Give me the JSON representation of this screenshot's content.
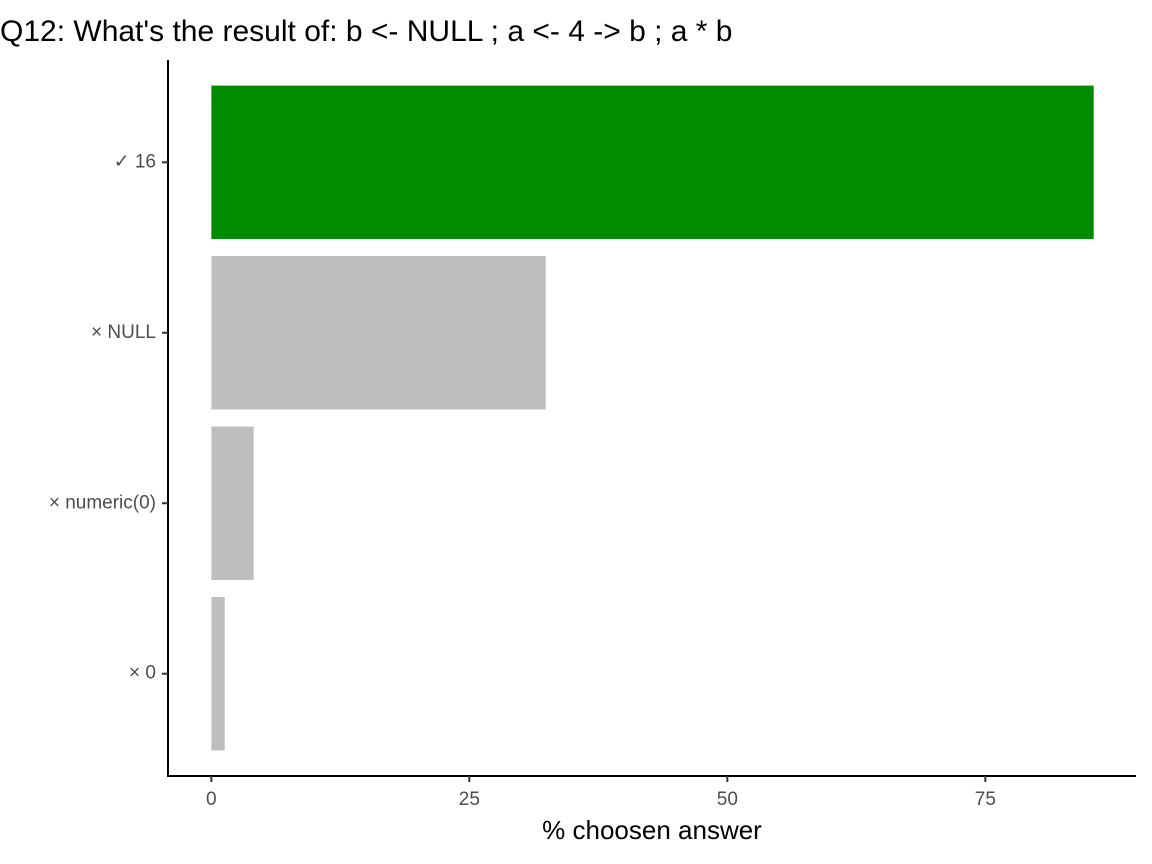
{
  "chart_data": {
    "type": "hbar",
    "title": "Q12: What's the result of: b <- NULL ; a <- 4 -> b ; a * b",
    "categories": [
      "✓ 16",
      "× NULL",
      "× numeric(0)",
      "× 0"
    ],
    "values": [
      85.5,
      32.4,
      4.1,
      1.3
    ],
    "colors": [
      "#008b00",
      "#bebebe",
      "#bebebe",
      "#bebebe"
    ],
    "xlabel": "% choosen answer",
    "xlim": [
      -4.2,
      89.6
    ],
    "xticks": [
      0,
      25,
      50,
      75
    ]
  }
}
